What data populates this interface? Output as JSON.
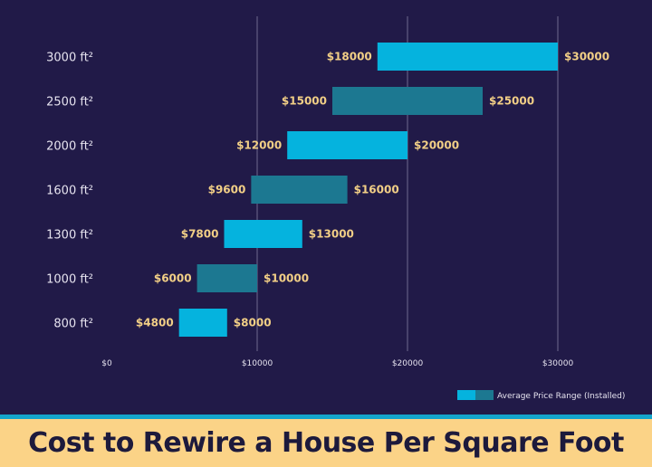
{
  "colors": {
    "background": "#211a48",
    "bar_light": "#05b3de",
    "bar_dark": "#1c7891",
    "value_label": "#f2cf86",
    "title_band": "#fbd387",
    "accent_line": "#14a5cc",
    "title_text": "#1d1a3c"
  },
  "title": "Cost to Rewire a House Per Square Foot",
  "chart_data": {
    "type": "bar",
    "orientation": "horizontal-floating-range",
    "categories": [
      "3000 ft²",
      "2500 ft²",
      "2000 ft²",
      "1600 ft²",
      "1300 ft²",
      "1000 ft²",
      "800 ft²"
    ],
    "series": [
      {
        "name": "Average Price Range (Installed)",
        "low": [
          18000,
          15000,
          12000,
          9600,
          7800,
          6000,
          4800
        ],
        "high": [
          30000,
          25000,
          20000,
          16000,
          13000,
          10000,
          8000
        ],
        "low_labels": [
          "$18000",
          "$15000",
          "$12000",
          "$9600",
          "$7800",
          "$6000",
          "$4800"
        ],
        "high_labels": [
          "$30000",
          "$25000",
          "$20000",
          "$16000",
          "$13000",
          "$10000",
          "$8000"
        ]
      }
    ],
    "xlim": [
      0,
      30000
    ],
    "xticks": [
      0,
      10000,
      20000,
      30000
    ],
    "xtick_labels": [
      "$0",
      "$10000",
      "$20000",
      "$30000"
    ],
    "grid": "vertical",
    "legend": {
      "position": "bottom-right",
      "label": "Average Price Range (Installed)"
    }
  }
}
